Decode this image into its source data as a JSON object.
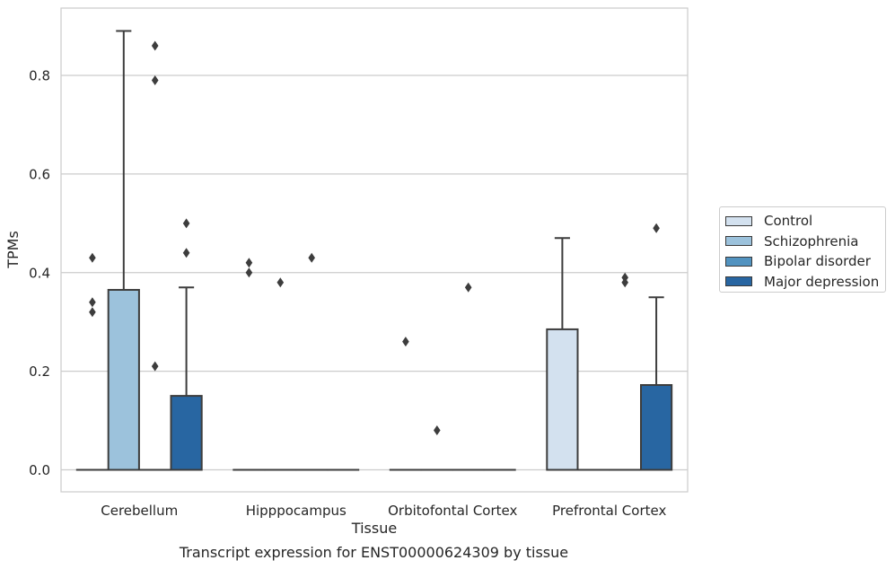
{
  "chart_data": {
    "type": "box",
    "xlabel": "Tissue",
    "ylabel": "TPMs",
    "categories": [
      "Cerebellum",
      "Hipppocampus",
      "Orbitofontal Cortex",
      "Prefrontal Cortex"
    ],
    "ylim": [
      -0.044,
      0.93
    ],
    "yticks": [
      0.0,
      0.2,
      0.4,
      0.6,
      0.8
    ],
    "ytick_labels": [
      "0.0",
      "0.2",
      "0.4",
      "0.6",
      "0.8"
    ],
    "grid": "horizontal",
    "legend_position": "right",
    "series": [
      {
        "name": "Control",
        "color": "#d3e1ef",
        "boxes": [
          {
            "q1": 0,
            "median": 0,
            "q3": 0,
            "whisker_low": 0,
            "whisker_high": 0,
            "outliers": [
              0.43,
              0.34,
              0.32
            ]
          },
          {
            "q1": 0,
            "median": 0,
            "q3": 0,
            "whisker_low": 0,
            "whisker_high": 0,
            "outliers": [
              0.42,
              0.4
            ]
          },
          {
            "q1": 0,
            "median": 0,
            "q3": 0,
            "whisker_low": 0,
            "whisker_high": 0,
            "outliers": [
              0.26
            ]
          },
          {
            "q1": 0,
            "median": 0,
            "q3": 0.285,
            "whisker_low": 0,
            "whisker_high": 0.47,
            "outliers": []
          }
        ]
      },
      {
        "name": "Schizophrenia",
        "color": "#9cc2dc",
        "boxes": [
          {
            "q1": 0,
            "median": 0,
            "q3": 0.365,
            "whisker_low": 0,
            "whisker_high": 0.89,
            "outliers": []
          },
          {
            "q1": 0,
            "median": 0,
            "q3": 0,
            "whisker_low": 0,
            "whisker_high": 0,
            "outliers": [
              0.38
            ]
          },
          {
            "q1": 0,
            "median": 0,
            "q3": 0,
            "whisker_low": 0,
            "whisker_high": 0,
            "outliers": [
              0.08
            ]
          },
          {
            "q1": 0,
            "median": 0,
            "q3": 0,
            "whisker_low": 0,
            "whisker_high": 0,
            "outliers": []
          }
        ]
      },
      {
        "name": "Bipolar disorder",
        "color": "#5293c0",
        "boxes": [
          {
            "q1": 0,
            "median": 0,
            "q3": 0,
            "whisker_low": 0,
            "whisker_high": 0,
            "outliers": [
              0.86,
              0.79,
              0.21
            ]
          },
          {
            "q1": 0,
            "median": 0,
            "q3": 0,
            "whisker_low": 0,
            "whisker_high": 0,
            "outliers": [
              0.43
            ]
          },
          {
            "q1": 0,
            "median": 0,
            "q3": 0,
            "whisker_low": 0,
            "whisker_high": 0,
            "outliers": [
              0.37
            ]
          },
          {
            "q1": 0,
            "median": 0,
            "q3": 0,
            "whisker_low": 0,
            "whisker_high": 0,
            "outliers": [
              0.39,
              0.38
            ]
          }
        ]
      },
      {
        "name": "Major depression",
        "color": "#2866a2",
        "boxes": [
          {
            "q1": 0,
            "median": 0,
            "q3": 0.15,
            "whisker_low": 0,
            "whisker_high": 0.37,
            "outliers": [
              0.5,
              0.44
            ]
          },
          {
            "q1": 0,
            "median": 0,
            "q3": 0,
            "whisker_low": 0,
            "whisker_high": 0,
            "outliers": []
          },
          {
            "q1": 0,
            "median": 0,
            "q3": 0,
            "whisker_low": 0,
            "whisker_high": 0,
            "outliers": []
          },
          {
            "q1": 0,
            "median": 0,
            "q3": 0.172,
            "whisker_low": 0,
            "whisker_high": 0.35,
            "outliers": [
              0.49
            ]
          }
        ]
      }
    ]
  },
  "caption": "Transcript expression for ENST00000624309 by tissue"
}
